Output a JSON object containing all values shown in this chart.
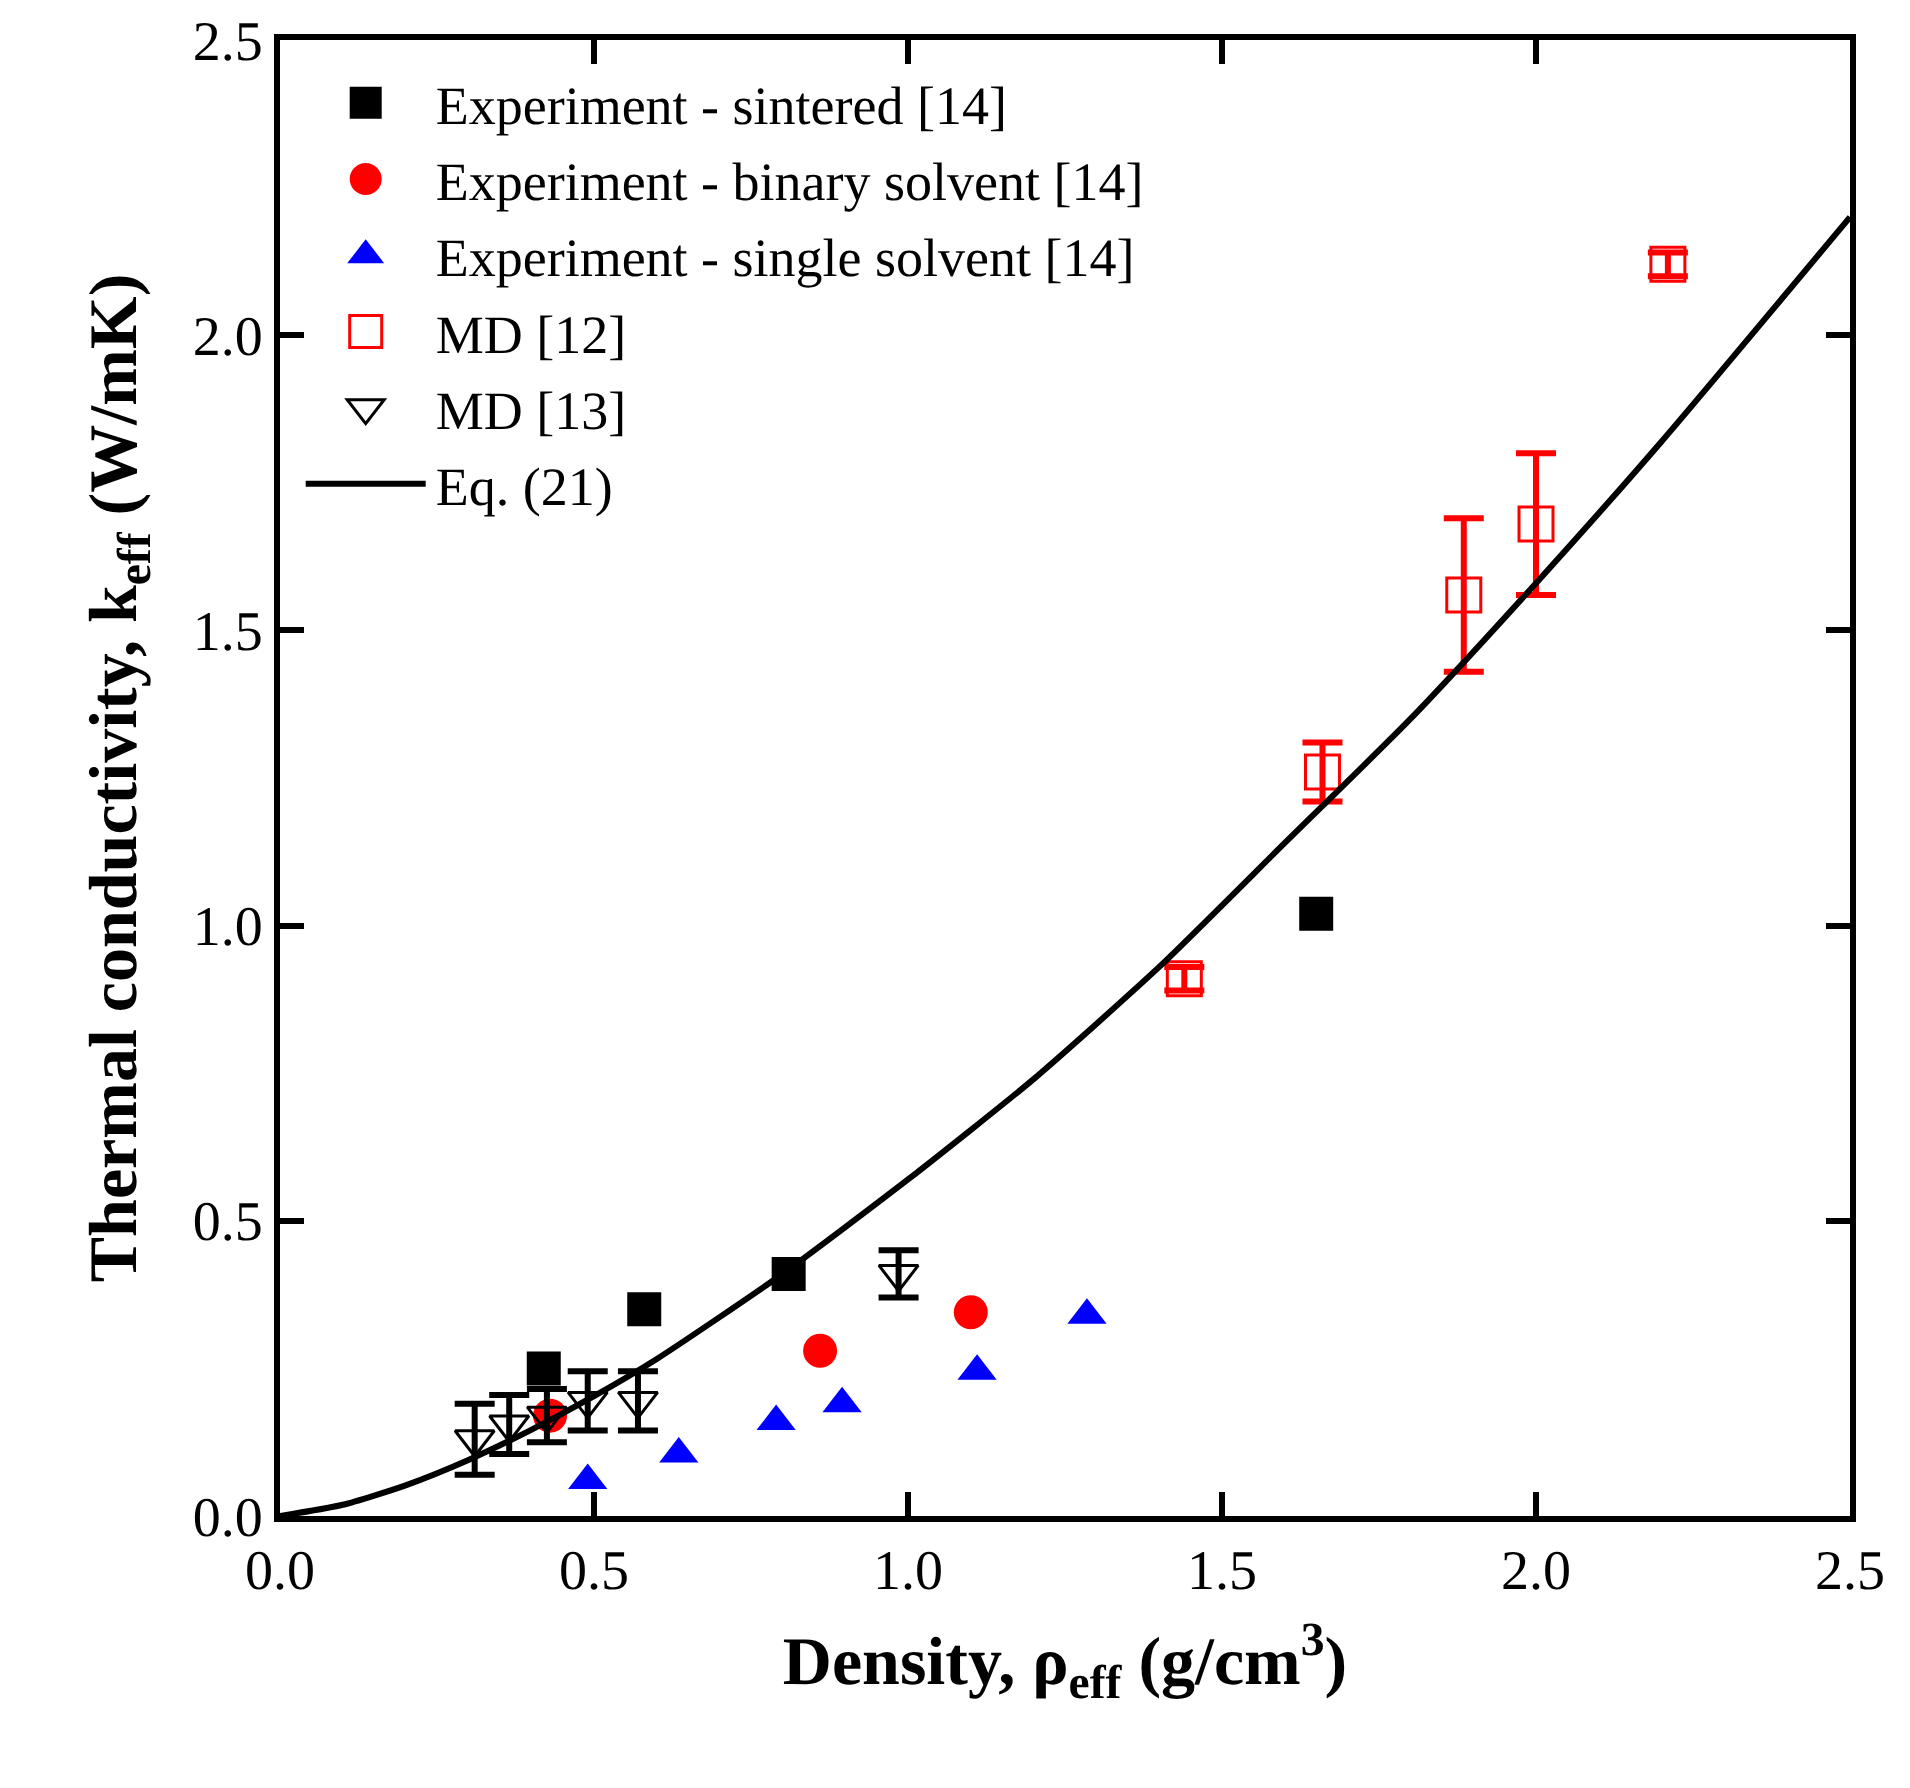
{
  "chart_data": {
    "type": "scatter",
    "xlabel": "Density, ρ$_{eff}$ (g/cm$^{3}$)",
    "ylabel": "Thermal conductivity, k$_{eff}$ (W/mK)",
    "xlim": [
      0,
      2.5
    ],
    "ylim": [
      0,
      2.5
    ],
    "xticks": [
      {
        "value": 0,
        "label": "0.0"
      },
      {
        "value": 0.5,
        "label": "0.5"
      },
      {
        "value": 1,
        "label": "1.0"
      },
      {
        "value": 1.5,
        "label": "1.5"
      },
      {
        "value": 2,
        "label": "2.0"
      },
      {
        "value": 2.5,
        "label": "2.5"
      }
    ],
    "yticks": [
      {
        "value": 0,
        "label": "0.0"
      },
      {
        "value": 0.5,
        "label": "0.5"
      },
      {
        "value": 1,
        "label": "1.0"
      },
      {
        "value": 1.5,
        "label": "1.5"
      },
      {
        "value": 2,
        "label": "2.0"
      },
      {
        "value": 2.5,
        "label": "2.5"
      }
    ],
    "grid": false,
    "legend": "top left",
    "series": [
      {
        "name": "Experiment - sintered [14]",
        "color": "#000000",
        "marker": "square",
        "x": [
          0.42,
          0.58,
          0.81,
          1.65
        ],
        "values": [
          0.25,
          0.35,
          0.41,
          1.02
        ]
      },
      {
        "name": "Experiment - binary solvent [14]",
        "color": "#ff0000",
        "marker": "circle",
        "x": [
          0.43,
          0.86,
          1.1
        ],
        "values": [
          0.17,
          0.28,
          0.345
        ]
      },
      {
        "name": "Experiment - single solvent [14]",
        "color": "#0000ff",
        "marker": "triangle",
        "x": [
          0.49,
          0.635,
          0.79,
          0.895,
          1.11,
          1.285
        ],
        "values": [
          0.06,
          0.105,
          0.16,
          0.19,
          0.245,
          0.34
        ]
      },
      {
        "name": "MD [12]",
        "color": "#ff0000",
        "marker": "square-open",
        "x": [
          1.44,
          1.66,
          1.885,
          2.0,
          2.21
        ],
        "values": [
          0.91,
          1.26,
          1.56,
          1.68,
          2.12
        ],
        "errors": [
          0.02,
          0.05,
          0.13,
          0.12,
          0.02
        ]
      },
      {
        "name": "MD [13]",
        "color": "#000000",
        "marker": "triangle-down-open",
        "x": [
          0.31,
          0.365,
          0.425,
          0.49,
          0.57,
          0.985
        ],
        "values": [
          0.13,
          0.155,
          0.17,
          0.195,
          0.195,
          0.41
        ],
        "errors": [
          0.06,
          0.05,
          0.045,
          0.05,
          0.05,
          0.04
        ]
      },
      {
        "name": "Eq. (21)",
        "type": "line",
        "color": "#000000",
        "marker": "none",
        "line_style": "solid",
        "x": [
          0,
          0.1,
          0.2,
          0.3,
          0.4,
          0.5,
          0.6,
          0.8,
          1.0,
          1.2,
          1.4,
          1.6,
          1.8,
          2.0,
          2.2,
          2.5
        ],
        "values": [
          0,
          0.019,
          0.052,
          0.095,
          0.146,
          0.203,
          0.266,
          0.41,
          0.57,
          0.74,
          0.93,
          1.14,
          1.35,
          1.58,
          1.82,
          2.2
        ]
      }
    ]
  }
}
